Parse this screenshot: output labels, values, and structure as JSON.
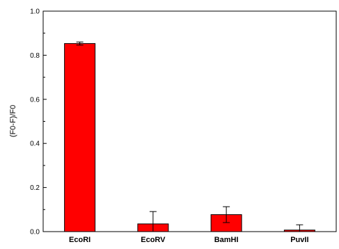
{
  "chart_data": {
    "type": "bar",
    "title": "",
    "xlabel": "",
    "ylabel": "(F0-F)/F0",
    "categories": [
      "EcoRI",
      "EcoRV",
      "BamHI",
      "PuvII"
    ],
    "series": [
      {
        "values": [
          0.853,
          0.035,
          0.077,
          0.007
        ],
        "errors": [
          0.007,
          0.056,
          0.036,
          0.024
        ],
        "color": "#ff0000"
      }
    ],
    "ylim": [
      0.0,
      1.0
    ],
    "y_ticks": [
      "0.0",
      "0.2",
      "0.4",
      "0.6",
      "0.8",
      "1.0"
    ],
    "grid": false,
    "legend": "none"
  }
}
